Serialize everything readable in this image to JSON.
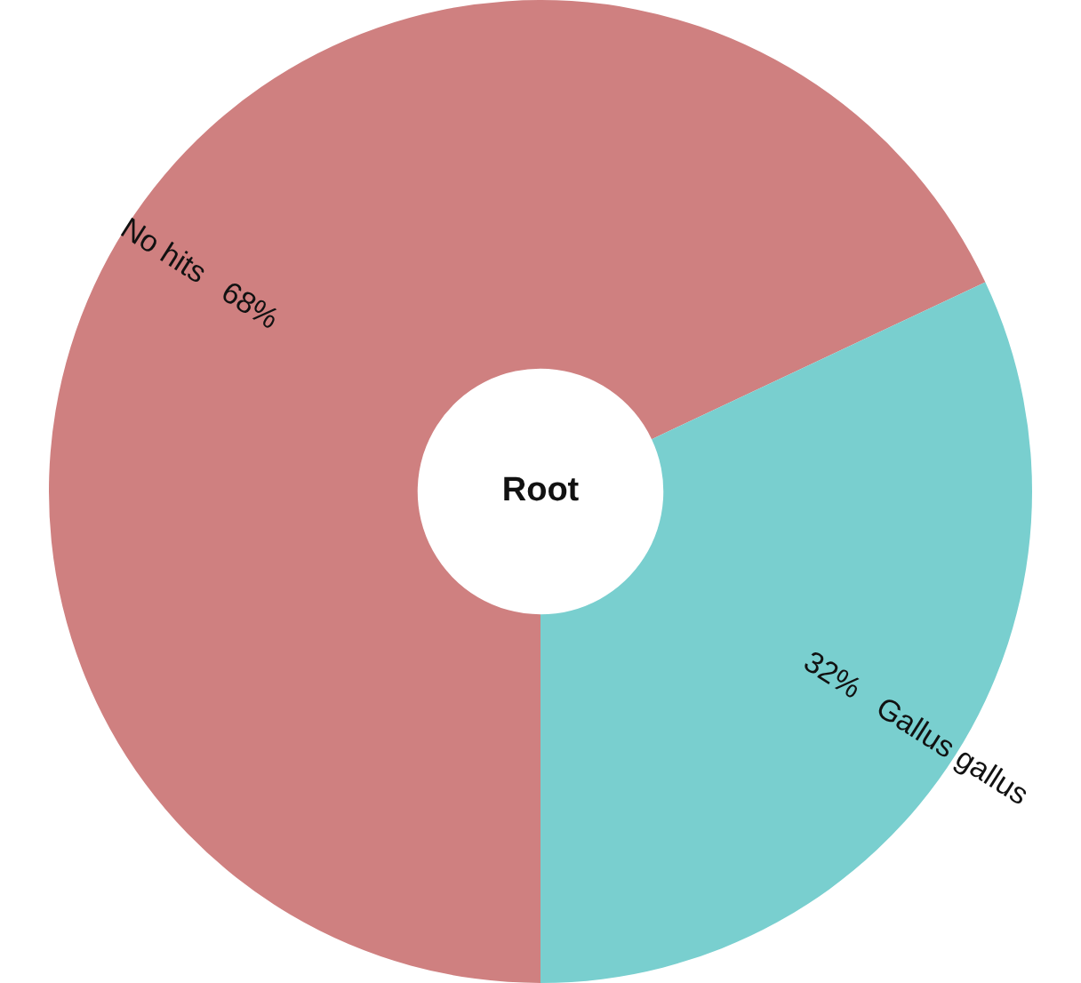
{
  "chart_data": {
    "type": "donut",
    "categories": [
      "No hits",
      "Gallus gallus"
    ],
    "values": [
      68,
      32
    ],
    "value_labels": [
      "68%",
      "32%"
    ],
    "colors": [
      "#cf8080",
      "#79cfcf"
    ],
    "annotations": [
      "Root"
    ],
    "legend": false
  }
}
